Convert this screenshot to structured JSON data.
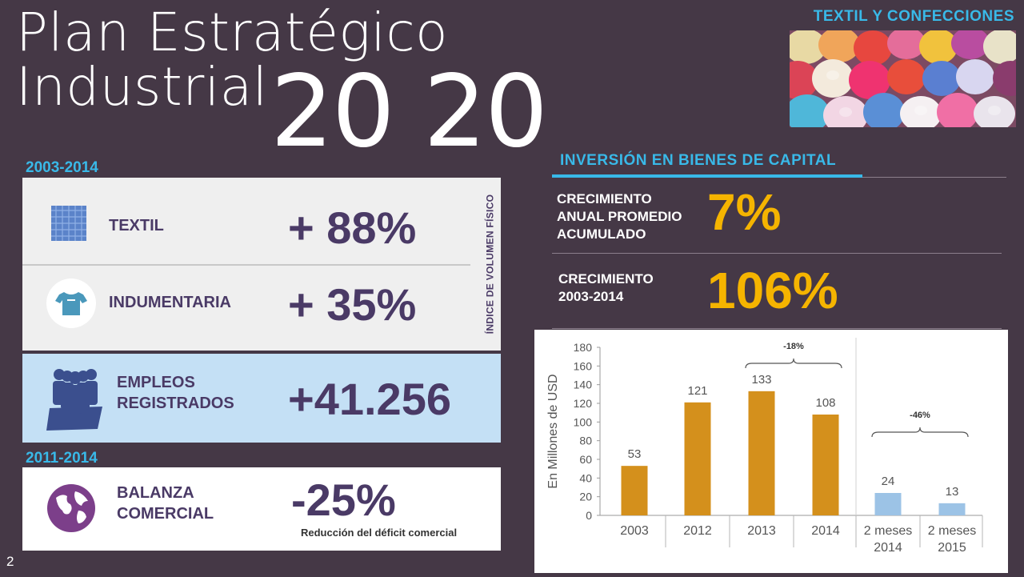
{
  "header": {
    "title_line1": "Plan Estratégico",
    "title_line2": "Industrial",
    "year": "20 20",
    "sector": "TEXTIL Y CONFECCIONES"
  },
  "left": {
    "period1": "2003-2014",
    "period2": "2011-2014",
    "vertical_note": "ÍNDICE DE VOLUMEN FÍSICO",
    "rows": {
      "textil": {
        "label": "TEXTIL",
        "value": "+ 88%"
      },
      "indumentaria": {
        "label": "INDUMENTARIA",
        "value": "+ 35%"
      },
      "empleos": {
        "label_line1": "EMPLEOS",
        "label_line2": "REGISTRADOS",
        "value": "+41.256"
      },
      "balanza": {
        "label_line1": "BALANZA",
        "label_line2": "COMERCIAL",
        "value": "-25%",
        "note": "Reducción del déficit comercial"
      }
    }
  },
  "investment": {
    "title": "INVERSIÓN EN BIENES DE CAPITAL",
    "kpi1": {
      "label_line1": "CRECIMIENTO",
      "label_line2": "ANUAL PROMEDIO",
      "label_line3": "ACUMULADO",
      "value": "7%"
    },
    "kpi2": {
      "label_line1": "CRECIMIENTO",
      "label_line2": "2003-2014",
      "value": "106%"
    }
  },
  "page_number": "2",
  "colors": {
    "background": "#453846",
    "accent_blue": "#39b9e8",
    "accent_yellow": "#f5b400",
    "dark_purple": "#4a3a66",
    "bar_orange": "#d4901c",
    "bar_blue": "#9cc3e6"
  },
  "icons": {
    "textil": "fabric-swatch-icon",
    "indumentaria": "tshirt-icon",
    "empleos": "people-group-icon",
    "balanza": "globe-icon"
  },
  "chart_data": {
    "type": "bar",
    "ylabel": "En Millones de USD",
    "ylim": [
      0,
      180
    ],
    "yticks": [
      0,
      20,
      40,
      60,
      80,
      100,
      120,
      140,
      160,
      180
    ],
    "categories": [
      [
        "2003"
      ],
      [
        "2012"
      ],
      [
        "2013"
      ],
      [
        "2014"
      ],
      [
        "2 meses",
        "2014"
      ],
      [
        "2 meses",
        "2015"
      ]
    ],
    "values": [
      53,
      121,
      133,
      108,
      24,
      13
    ],
    "labels": [
      "53",
      "121",
      "133",
      "108",
      "24",
      "13"
    ],
    "bar_colors": [
      "#d4901c",
      "#d4901c",
      "#d4901c",
      "#d4901c",
      "#9cc3e6",
      "#9cc3e6"
    ],
    "annotations": [
      {
        "text": "-18%",
        "from_index": 2,
        "to_index": 3
      },
      {
        "text": "-46%",
        "from_index": 4,
        "to_index": 5
      }
    ],
    "grid": false,
    "legend": "none"
  }
}
